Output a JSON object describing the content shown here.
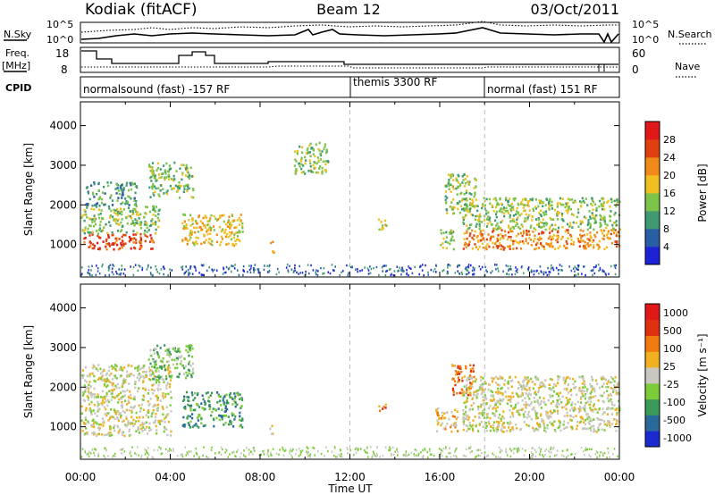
{
  "header": {
    "station": "Kodiak (fitACF)",
    "beam": "Beam 12",
    "date": "03/Oct/2011"
  },
  "strip_labels": {
    "nsky": "N.Sky",
    "nsearch": "N.Search",
    "freq": "Freq.",
    "freq_unit": "[MHz]",
    "nave": "Nave",
    "cpid": "CPID",
    "count_ticks": [
      "10^5",
      "10^0"
    ],
    "freq_ticks": [
      "18",
      "8"
    ],
    "nave_ticks": [
      "60",
      "0"
    ]
  },
  "cpid_segments": [
    {
      "label": "normalsound (fast) -157 RF",
      "start_hour": 0
    },
    {
      "label": "themis 3300 RF",
      "start_hour": 12
    },
    {
      "label": "normal (fast) 151 RF",
      "start_hour": 18
    }
  ],
  "chart_data": [
    {
      "type": "heatmap",
      "quantity": "Power",
      "ylabel": "Slant Range [km]",
      "ylim": [
        180,
        4600
      ],
      "yticks": [
        1000,
        2000,
        3000,
        4000
      ],
      "xlim": [
        0,
        24
      ],
      "colorbar": {
        "label": "Power [dB]",
        "ticks": [
          "4",
          "8",
          "12",
          "16",
          "20",
          "24",
          "28"
        ],
        "colors": [
          "#1e22d6",
          "#2a5ea4",
          "#3f9a72",
          "#7cc34a",
          "#f0c020",
          "#f08a18",
          "#e04010",
          "#e01818"
        ]
      },
      "echo_regions": [
        {
          "t0": 0.0,
          "t1": 3.3,
          "r0": 900,
          "r1": 1300,
          "level": 6
        },
        {
          "t0": 0.0,
          "t1": 3.5,
          "r0": 1300,
          "r1": 2000,
          "level": 3
        },
        {
          "t0": 0.2,
          "t1": 2.5,
          "r0": 2000,
          "r1": 2600,
          "level": 2
        },
        {
          "t0": 3.0,
          "t1": 5.0,
          "r0": 2200,
          "r1": 3100,
          "level": 3
        },
        {
          "t0": 4.5,
          "t1": 7.2,
          "r0": 1000,
          "r1": 1800,
          "level": 4
        },
        {
          "t0": 8.4,
          "t1": 8.6,
          "r0": 800,
          "r1": 1100,
          "level": 5
        },
        {
          "t0": 9.5,
          "t1": 11.0,
          "r0": 2800,
          "r1": 3600,
          "level": 3
        },
        {
          "t0": 13.2,
          "t1": 13.6,
          "r0": 1400,
          "r1": 1700,
          "level": 4
        },
        {
          "t0": 16.0,
          "t1": 16.6,
          "r0": 900,
          "r1": 1400,
          "level": 3
        },
        {
          "t0": 16.2,
          "t1": 17.6,
          "r0": 1800,
          "r1": 2800,
          "level": 3
        },
        {
          "t0": 17.0,
          "t1": 24.0,
          "r0": 900,
          "r1": 1400,
          "level": 5
        },
        {
          "t0": 17.0,
          "t1": 24.0,
          "r0": 1400,
          "r1": 2200,
          "level": 3
        }
      ]
    },
    {
      "type": "heatmap",
      "quantity": "Velocity",
      "ylabel": "Slant Range [km]",
      "ylim": [
        180,
        4600
      ],
      "yticks": [
        1000,
        2000,
        3000,
        4000
      ],
      "xlim": [
        0,
        24
      ],
      "xticks": [
        "00:00",
        "04:00",
        "08:00",
        "12:00",
        "16:00",
        "20:00",
        "00:00"
      ],
      "xlabel": "Time UT",
      "colorbar": {
        "label": "Velocity [m s⁻¹]",
        "ticks": [
          "1000",
          "500",
          "100",
          "25",
          "-25",
          "-100",
          "-500",
          "-1000"
        ],
        "colors": [
          "#1a2ad0",
          "#2a6a9a",
          "#3a9a5a",
          "#7ccc3a",
          "#c8c8c0",
          "#f0b020",
          "#f07a10",
          "#e03010",
          "#e01818"
        ]
      },
      "echo_regions": [
        {
          "t0": 0.0,
          "t1": 4.0,
          "r0": 800,
          "r1": 2600,
          "level": 4
        },
        {
          "t0": 3.0,
          "t1": 5.0,
          "r0": 2200,
          "r1": 3100,
          "level": 3
        },
        {
          "t0": 4.5,
          "t1": 7.2,
          "r0": 1000,
          "r1": 1900,
          "level": 2
        },
        {
          "t0": 8.4,
          "t1": 8.6,
          "r0": 800,
          "r1": 1100,
          "level": 5
        },
        {
          "t0": 13.2,
          "t1": 13.6,
          "r0": 1400,
          "r1": 1700,
          "level": 6
        },
        {
          "t0": 15.8,
          "t1": 16.8,
          "r0": 900,
          "r1": 1500,
          "level": 5
        },
        {
          "t0": 16.5,
          "t1": 17.5,
          "r0": 1800,
          "r1": 2600,
          "level": 6
        },
        {
          "t0": 17.0,
          "t1": 24.0,
          "r0": 900,
          "r1": 2300,
          "level": 4
        }
      ]
    }
  ]
}
